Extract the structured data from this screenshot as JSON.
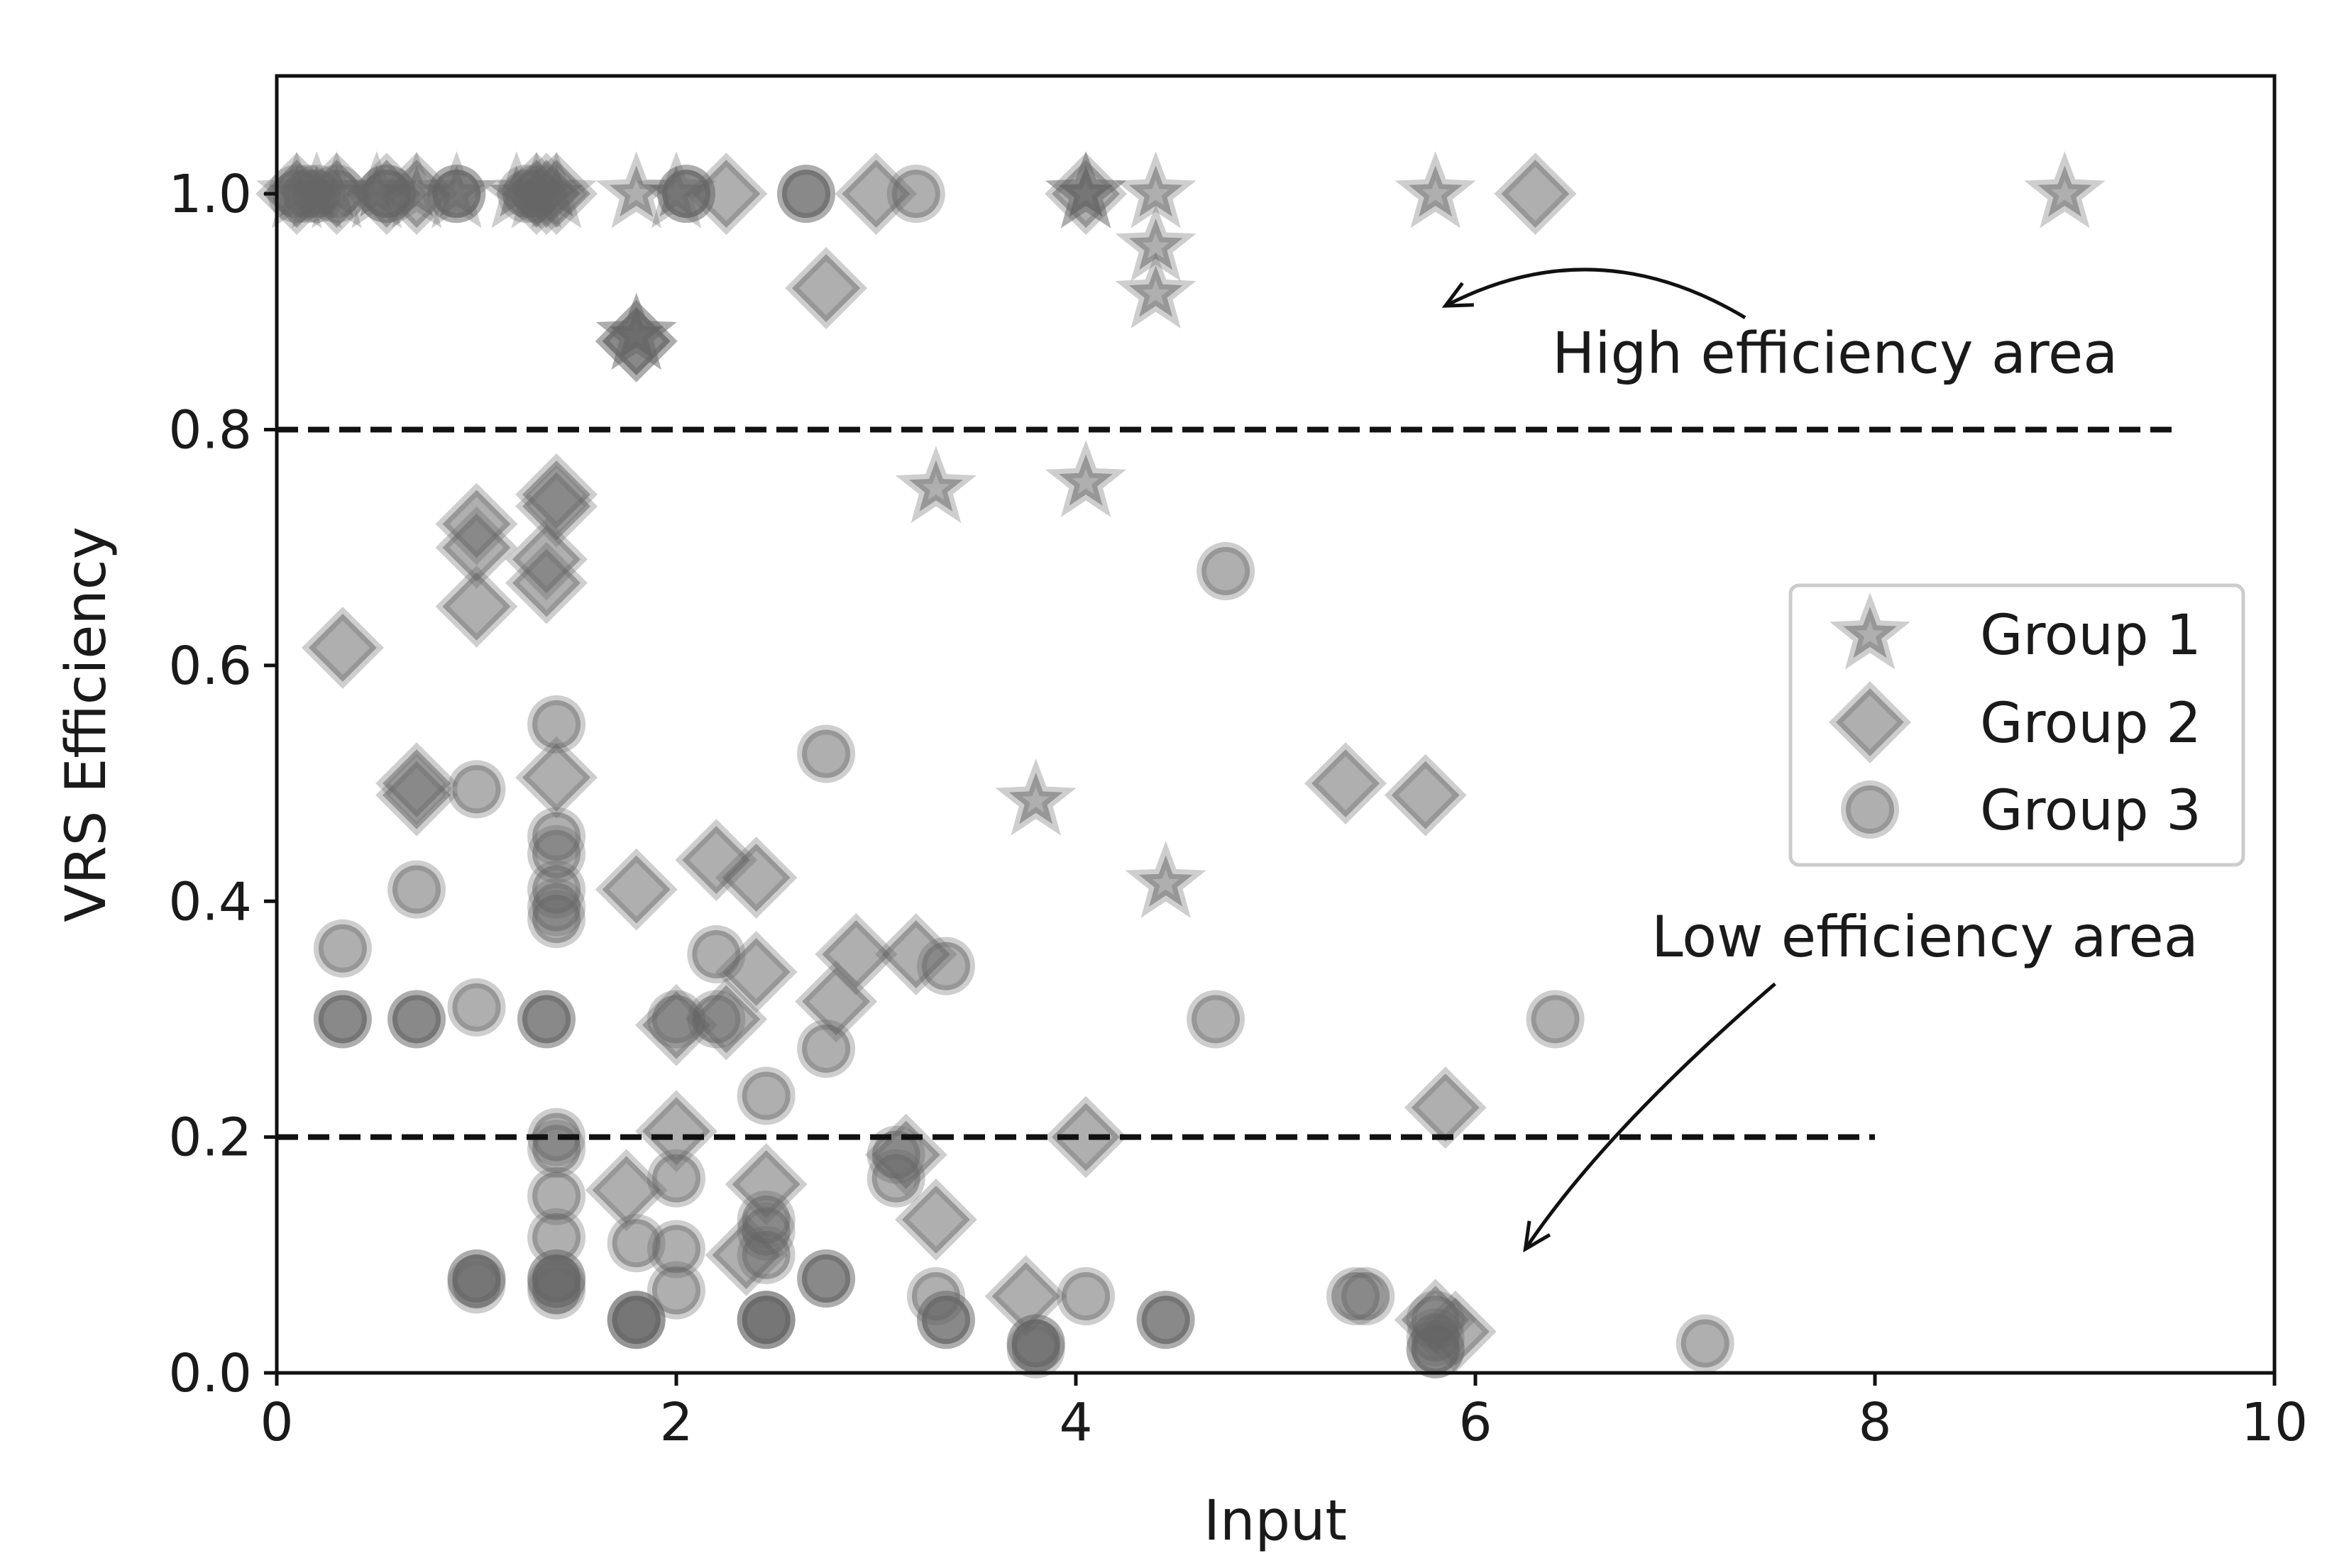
{
  "chart_data": {
    "type": "scatter",
    "title": "",
    "xlabel": "Input",
    "ylabel": "VRS Efficiency",
    "xlim": [
      0,
      10
    ],
    "ylim": [
      0,
      1.1
    ],
    "xticks": [
      0,
      2,
      4,
      6,
      8,
      10
    ],
    "xtick_labels": [
      "0",
      "2",
      "4",
      "6",
      "8",
      "10"
    ],
    "yticks": [
      0,
      0.2,
      0.4,
      0.6,
      0.8,
      1.0
    ],
    "ytick_labels": [
      "0.0",
      "0.2",
      "0.4",
      "0.6",
      "0.8",
      "1.0"
    ],
    "grid": false,
    "legend_position": "center-right",
    "marker_color": "#666666",
    "reference_lines": [
      {
        "name": "high-threshold",
        "y": 0.8,
        "x_start": 0,
        "x_end": 9.5
      },
      {
        "name": "low-threshold",
        "y": 0.2,
        "x_start": 0,
        "x_end": 8
      }
    ],
    "annotations": [
      {
        "name": "high-efficiency",
        "text": "High efficiency area",
        "text_x": 7.8,
        "text_y": 0.865,
        "arrow_from": [
          7.35,
          0.895
        ],
        "arrow_to": [
          5.85,
          0.905
        ]
      },
      {
        "name": "low-efficiency",
        "text": "Low efficiency area",
        "text_x": 8.25,
        "text_y": 0.37,
        "arrow_from": [
          7.5,
          0.33
        ],
        "arrow_to": [
          6.25,
          0.105
        ]
      }
    ],
    "series": [
      {
        "name": "Group 1",
        "marker": "star",
        "points": [
          [
            0.1,
            1.0
          ],
          [
            0.2,
            1.0
          ],
          [
            0.3,
            1.0
          ],
          [
            0.5,
            1.0
          ],
          [
            0.7,
            1.0
          ],
          [
            0.9,
            1.0
          ],
          [
            1.2,
            1.0
          ],
          [
            1.3,
            1.0
          ],
          [
            1.4,
            1.0
          ],
          [
            1.8,
            1.0
          ],
          [
            2.0,
            1.0
          ],
          [
            4.05,
            1.0
          ],
          [
            4.05,
            1.0
          ],
          [
            4.4,
            1.0
          ],
          [
            4.4,
            0.955
          ],
          [
            4.4,
            0.915
          ],
          [
            5.8,
            1.0
          ],
          [
            8.95,
            1.0
          ],
          [
            1.8,
            0.88
          ],
          [
            1.8,
            0.88
          ],
          [
            3.3,
            0.75
          ],
          [
            4.05,
            0.755
          ],
          [
            3.8,
            0.485
          ],
          [
            4.45,
            0.415
          ]
        ]
      },
      {
        "name": "Group 2",
        "marker": "diamond",
        "points": [
          [
            0.1,
            1.0
          ],
          [
            0.3,
            1.0
          ],
          [
            0.55,
            1.0
          ],
          [
            0.7,
            1.0
          ],
          [
            1.3,
            1.0
          ],
          [
            1.35,
            1.0
          ],
          [
            1.4,
            1.0
          ],
          [
            2.25,
            1.0
          ],
          [
            3.0,
            1.0
          ],
          [
            4.05,
            1.0
          ],
          [
            6.3,
            1.0
          ],
          [
            2.75,
            0.92
          ],
          [
            1.8,
            0.875
          ],
          [
            1.8,
            0.875
          ],
          [
            1.0,
            0.72
          ],
          [
            1.0,
            0.7
          ],
          [
            1.0,
            0.65
          ],
          [
            1.4,
            0.745
          ],
          [
            1.4,
            0.735
          ],
          [
            1.35,
            0.69
          ],
          [
            1.35,
            0.67
          ],
          [
            0.33,
            0.615
          ],
          [
            0.7,
            0.5
          ],
          [
            0.7,
            0.49
          ],
          [
            1.4,
            0.505
          ],
          [
            5.35,
            0.5
          ],
          [
            5.75,
            0.49
          ],
          [
            1.8,
            0.41
          ],
          [
            2.2,
            0.435
          ],
          [
            2.4,
            0.42
          ],
          [
            2.4,
            0.34
          ],
          [
            2.9,
            0.355
          ],
          [
            3.2,
            0.355
          ],
          [
            2.8,
            0.315
          ],
          [
            2.0,
            0.295
          ],
          [
            2.25,
            0.3
          ],
          [
            2.0,
            0.205
          ],
          [
            4.05,
            0.2
          ],
          [
            5.85,
            0.225
          ],
          [
            3.3,
            0.13
          ],
          [
            3.15,
            0.185
          ],
          [
            1.75,
            0.155
          ],
          [
            2.45,
            0.16
          ],
          [
            2.35,
            0.1
          ],
          [
            3.75,
            0.065
          ],
          [
            5.8,
            0.045
          ],
          [
            5.9,
            0.035
          ]
        ]
      },
      {
        "name": "Group 3",
        "marker": "circle",
        "points": [
          [
            0.1,
            1.0
          ],
          [
            0.15,
            1.0
          ],
          [
            0.2,
            1.0
          ],
          [
            0.3,
            1.0
          ],
          [
            0.55,
            1.0
          ],
          [
            0.55,
            1.0
          ],
          [
            0.9,
            1.0
          ],
          [
            0.9,
            1.0
          ],
          [
            1.25,
            1.0
          ],
          [
            1.3,
            1.0
          ],
          [
            2.05,
            1.0
          ],
          [
            2.05,
            1.0
          ],
          [
            2.65,
            1.0
          ],
          [
            2.65,
            1.0
          ],
          [
            3.2,
            1.0
          ],
          [
            4.75,
            0.68
          ],
          [
            1.4,
            0.55
          ],
          [
            1.0,
            0.495
          ],
          [
            2.75,
            0.525
          ],
          [
            1.4,
            0.455
          ],
          [
            1.4,
            0.44
          ],
          [
            1.4,
            0.41
          ],
          [
            1.4,
            0.395
          ],
          [
            1.4,
            0.385
          ],
          [
            0.7,
            0.41
          ],
          [
            0.33,
            0.36
          ],
          [
            0.33,
            0.3
          ],
          [
            0.33,
            0.3
          ],
          [
            0.7,
            0.3
          ],
          [
            0.7,
            0.3
          ],
          [
            1.0,
            0.31
          ],
          [
            1.35,
            0.3
          ],
          [
            1.35,
            0.3
          ],
          [
            2.0,
            0.3
          ],
          [
            2.2,
            0.3
          ],
          [
            2.2,
            0.355
          ],
          [
            3.35,
            0.345
          ],
          [
            4.7,
            0.3
          ],
          [
            6.4,
            0.3
          ],
          [
            2.75,
            0.275
          ],
          [
            2.45,
            0.235
          ],
          [
            1.4,
            0.2
          ],
          [
            1.4,
            0.19
          ],
          [
            1.4,
            0.15
          ],
          [
            1.4,
            0.115
          ],
          [
            2.0,
            0.165
          ],
          [
            3.1,
            0.185
          ],
          [
            3.1,
            0.165
          ],
          [
            1.8,
            0.11
          ],
          [
            2.0,
            0.105
          ],
          [
            2.0,
            0.07
          ],
          [
            2.45,
            0.13
          ],
          [
            2.45,
            0.12
          ],
          [
            2.45,
            0.1
          ],
          [
            1.0,
            0.08
          ],
          [
            1.0,
            0.08
          ],
          [
            1.0,
            0.075
          ],
          [
            1.4,
            0.08
          ],
          [
            1.4,
            0.08
          ],
          [
            1.4,
            0.075
          ],
          [
            1.4,
            0.07
          ],
          [
            1.8,
            0.045
          ],
          [
            1.8,
            0.045
          ],
          [
            1.8,
            0.045
          ],
          [
            2.45,
            0.045
          ],
          [
            2.45,
            0.045
          ],
          [
            2.45,
            0.045
          ],
          [
            2.75,
            0.08
          ],
          [
            2.75,
            0.08
          ],
          [
            3.3,
            0.065
          ],
          [
            3.35,
            0.045
          ],
          [
            3.35,
            0.045
          ],
          [
            3.8,
            0.025
          ],
          [
            3.8,
            0.025
          ],
          [
            3.8,
            0.02
          ],
          [
            4.05,
            0.065
          ],
          [
            4.45,
            0.045
          ],
          [
            4.45,
            0.045
          ],
          [
            5.4,
            0.065
          ],
          [
            5.45,
            0.065
          ],
          [
            5.8,
            0.045
          ],
          [
            5.8,
            0.03
          ],
          [
            5.8,
            0.02
          ],
          [
            5.8,
            0.02
          ],
          [
            7.15,
            0.025
          ]
        ]
      }
    ]
  }
}
